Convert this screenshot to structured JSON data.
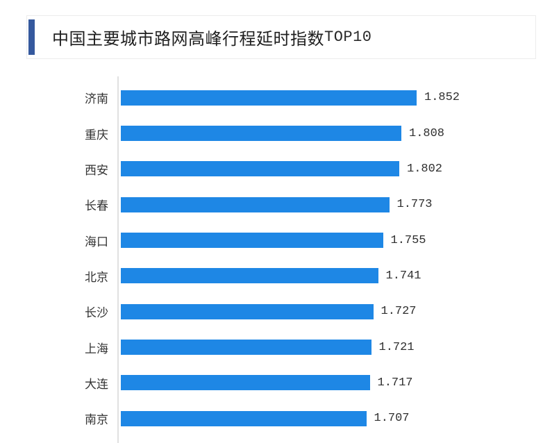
{
  "header": {
    "title_main": "中国主要城市路网高峰行程延时指数",
    "title_suffix": "TOP10",
    "accent_color": "#35599e"
  },
  "chart_data": {
    "type": "bar",
    "orientation": "horizontal",
    "title": "中国主要城市路网高峰行程延时指数TOP10",
    "categories": [
      "济南",
      "重庆",
      "西安",
      "长春",
      "海口",
      "北京",
      "长沙",
      "上海",
      "大连",
      "南京"
    ],
    "values": [
      1.852,
      1.808,
      1.802,
      1.773,
      1.755,
      1.741,
      1.727,
      1.721,
      1.717,
      1.707
    ],
    "value_labels": [
      "1.852",
      "1.808",
      "1.802",
      "1.773",
      "1.755",
      "1.741",
      "1.727",
      "1.721",
      "1.717",
      "1.707"
    ],
    "xlabel": "",
    "ylabel": "",
    "xlim": [
      1.0,
      1.9
    ],
    "grid": false,
    "legend": false,
    "bar_color": "#1e87e5",
    "axis_line_color": "#e0e0e0"
  }
}
